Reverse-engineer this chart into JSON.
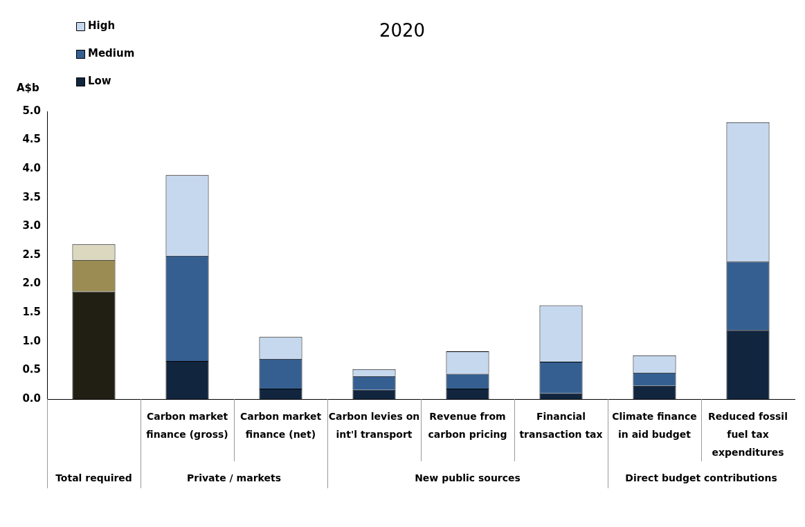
{
  "chart_data": {
    "type": "bar",
    "title": "2020",
    "ylabel": "A$b",
    "stacked": true,
    "grid": false,
    "legend": "top left",
    "categories": [
      null,
      "Carbon market finance (gross)",
      "Carbon market finance (net)",
      "Carbon levies on int'l transport",
      "Revenue from carbon pricing",
      "Financial transaction tax",
      "Climate finance in aid budget",
      "Reduced fossil fuel tax expenditures"
    ],
    "series": [
      {
        "name": "Low",
        "color": "#12253f",
        "colors": [
          "#211f14",
          "#12253f",
          "#12253f",
          "#12253f",
          "#12253f",
          "#12253f",
          "#12253f",
          "#12253f"
        ],
        "values": [
          1.87,
          0.66,
          0.18,
          0.16,
          0.18,
          0.1,
          0.23,
          1.2
        ]
      },
      {
        "name": "Medium",
        "color": "#355f91",
        "colors": [
          "#9a8c52",
          "#355f91",
          "#355f91",
          "#355f91",
          "#355f91",
          "#355f91",
          "#355f91",
          "#355f91"
        ],
        "values": [
          0.55,
          1.83,
          0.52,
          0.24,
          0.26,
          0.55,
          0.23,
          1.19
        ]
      },
      {
        "name": "High",
        "color": "#c6d8ee",
        "colors": [
          "#dcd8c0",
          "#c6d8ee",
          "#c6d8ee",
          "#c6d8ee",
          "#c6d8ee",
          "#c6d8ee",
          "#c6d8ee",
          "#c6d8ee"
        ],
        "values": [
          0.27,
          1.4,
          0.38,
          0.12,
          0.39,
          0.98,
          0.3,
          2.42
        ]
      }
    ],
    "ylim": [
      0,
      5
    ],
    "yticks": [
      {
        "value": 0,
        "label": "0.0"
      },
      {
        "value": 0.5,
        "label": "0.5"
      },
      {
        "value": 1,
        "label": "1.0"
      },
      {
        "value": 1.5,
        "label": "1.5"
      },
      {
        "value": 2,
        "label": "2.0"
      },
      {
        "value": 2.5,
        "label": "2.5"
      },
      {
        "value": 3,
        "label": "3.0"
      },
      {
        "value": 3.5,
        "label": "3.5"
      },
      {
        "value": 4,
        "label": "4.0"
      },
      {
        "value": 4.5,
        "label": "4.5"
      },
      {
        "value": 5,
        "label": "5.0"
      }
    ],
    "annotations": [
      "Total required",
      "Private / markets",
      "New public sources",
      "Direct budget contributions"
    ]
  }
}
